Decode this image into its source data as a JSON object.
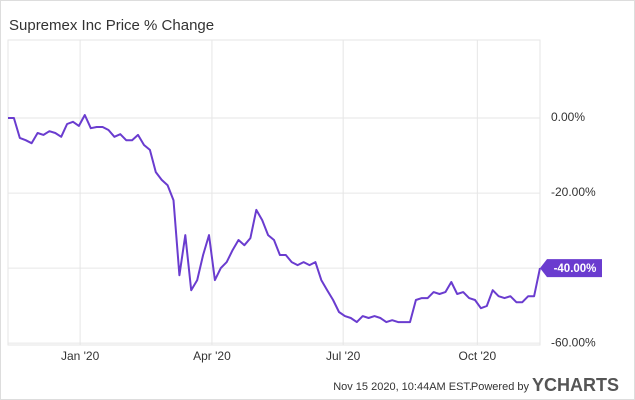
{
  "chart_data": {
    "type": "line",
    "title": "Supremex Inc Price % Change",
    "series": [
      {
        "name": "Supremex Inc",
        "color": "#6a3ccf",
        "values": [
          0,
          0,
          -5.3,
          -5.9,
          -6.7,
          -4,
          -4.5,
          -3.5,
          -4,
          -5,
          -1.6,
          -1,
          -2.1,
          0.8,
          -2.7,
          -2.4,
          -2.4,
          -3.2,
          -5,
          -4.3,
          -5.9,
          -5.9,
          -4.5,
          -7.2,
          -8.5,
          -14.4,
          -16.5,
          -17.9,
          -21.9,
          -41.9,
          -31.2,
          -45.9,
          -43.2,
          -36.5,
          -31.2,
          -43.2,
          -40,
          -38.4,
          -35.2,
          -32.5,
          -33.9,
          -32,
          -24.5,
          -27.2,
          -31.2,
          -32.5,
          -36.5,
          -36.5,
          -38.4,
          -39.2,
          -38.4,
          -39.2,
          -38.4,
          -43.2,
          -45.9,
          -48.5,
          -51.7,
          -52.8,
          -53.3,
          -54.4,
          -52.8,
          -53.3,
          -52.8,
          -53.3,
          -54.4,
          -53.9,
          -54.4,
          -54.4,
          -54.4,
          -48.5,
          -48,
          -48,
          -46.4,
          -46.9,
          -46.4,
          -43.7,
          -46.9,
          -46.4,
          -48,
          -48.5,
          -50.7,
          -50.1,
          -45.9,
          -47.5,
          -48,
          -47.5,
          -49.1,
          -49.1,
          -47.5,
          -47.5,
          -40
        ],
        "value_labels": [
          null,
          null,
          null,
          null,
          null,
          null,
          null,
          null,
          null,
          null,
          null,
          null,
          null,
          null,
          null,
          null,
          null,
          null,
          null,
          null,
          null,
          null,
          null,
          null,
          null,
          null,
          null,
          null,
          null,
          null,
          null,
          null,
          null,
          null,
          null,
          null,
          null,
          null,
          null,
          null,
          null,
          null,
          null,
          null,
          null,
          null,
          null,
          null,
          null,
          null,
          null,
          null,
          null,
          null,
          null,
          null,
          null,
          null,
          null,
          null,
          null,
          null,
          null,
          null,
          null,
          null,
          null,
          null,
          null,
          null,
          null,
          null,
          null,
          null,
          null,
          null,
          null,
          null,
          null,
          null,
          null,
          null,
          null,
          null,
          null,
          null,
          null,
          null,
          null,
          null,
          "-40.00%"
        ]
      }
    ],
    "xlim": [
      0,
      90
    ],
    "xticks": [
      {
        "value": 12.2,
        "label": "Jan '20"
      },
      {
        "value": 34.5,
        "label": "Apr '20"
      },
      {
        "value": 56.7,
        "label": "Jul '20"
      },
      {
        "value": 79.4,
        "label": "Oct '20"
      }
    ],
    "ylim": [
      -60.5,
      20.8
    ],
    "yticks": [
      {
        "value": 0,
        "label": "0.00%"
      },
      {
        "value": -20,
        "label": "-20.00%"
      },
      {
        "value": -40,
        "label": "-40.00%"
      },
      {
        "value": -60,
        "label": "-60.00%"
      }
    ],
    "grid": true,
    "footer": {
      "timestamp": "Nov 15 2020, 10:44AM EST.",
      "powered_by": "Powered by",
      "brand": "YCHARTS"
    }
  }
}
